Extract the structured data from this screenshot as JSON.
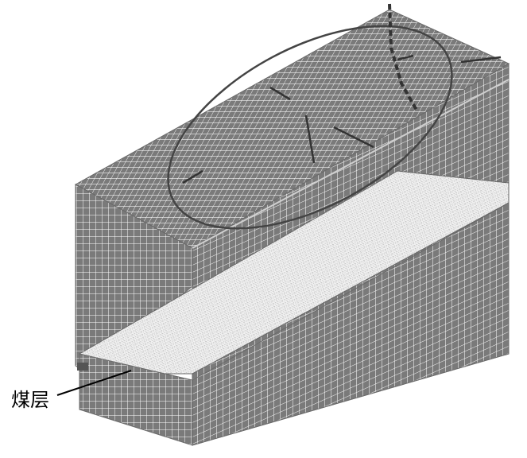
{
  "figure": {
    "callout_label": "煤层"
  },
  "colors": {
    "background": "#ffffff",
    "mesh_fill": "#7a7a7a",
    "mesh_line": "#ffffff",
    "seam_fill": "#e6e6e6",
    "seam_line": "#555555",
    "ellipse_line": "#444444",
    "callout_line": "#000000"
  }
}
